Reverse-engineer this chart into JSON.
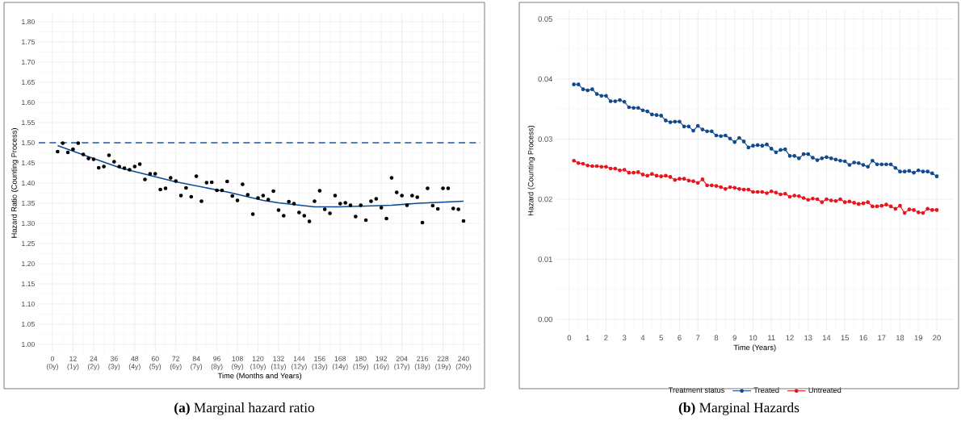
{
  "chart_data": [
    {
      "type": "scatter",
      "title": "**(a)** Marginal hazard ratio",
      "xlabel": "Time (Months and Years)",
      "ylabel": "Hazard Ratio (Counting Process)",
      "xlim": [
        -8,
        250
      ],
      "ylim": [
        0.98,
        1.82
      ],
      "xticks": [
        0,
        12,
        24,
        36,
        48,
        60,
        72,
        84,
        96,
        108,
        120,
        132,
        144,
        156,
        168,
        180,
        192,
        204,
        216,
        228,
        240
      ],
      "x2lim": [
        -0.6666666666666666,
        20.833333333333332
      ],
      "x2ticks": [
        {
          "value": 0,
          "label": "(0y)"
        },
        {
          "value": 1,
          "label": "(1y)"
        },
        {
          "value": 2,
          "label": "(2y)"
        },
        {
          "value": 3,
          "label": "(3y)"
        },
        {
          "value": 4,
          "label": "(4y)"
        },
        {
          "value": 5,
          "label": "(5y)"
        },
        {
          "value": 6,
          "label": "(6y)"
        },
        {
          "value": 7,
          "label": "(7y)"
        },
        {
          "value": 8,
          "label": "(8y)"
        },
        {
          "value": 9,
          "label": "(9y)"
        },
        {
          "value": 10,
          "label": "(10y)"
        },
        {
          "value": 11,
          "label": "(11y)"
        },
        {
          "value": 12,
          "label": "(12y)"
        },
        {
          "value": 13,
          "label": "(13y)"
        },
        {
          "value": 14,
          "label": "(14y)"
        },
        {
          "value": 15,
          "label": "(15y)"
        },
        {
          "value": 16,
          "label": "(16y)"
        },
        {
          "value": 17,
          "label": "(17y)"
        },
        {
          "value": 18,
          "label": "(18y)"
        },
        {
          "value": 19,
          "label": "(19y)"
        },
        {
          "value": 20,
          "label": "(20y)"
        }
      ],
      "yticks": [
        {
          "value": 1.0,
          "label": "1.00"
        },
        {
          "value": 1.05,
          "label": "1.05"
        },
        {
          "value": 1.1,
          "label": "1.10"
        },
        {
          "value": 1.15,
          "label": "1.15"
        },
        {
          "value": 1.2,
          "label": "1.20"
        },
        {
          "value": 1.25,
          "label": "1.25"
        },
        {
          "value": 1.3,
          "label": "1.30"
        },
        {
          "value": 1.35,
          "label": "1.35"
        },
        {
          "value": 1.4,
          "label": "1.40"
        },
        {
          "value": 1.45,
          "label": "1.45"
        },
        {
          "value": 1.5,
          "label": "1.50"
        },
        {
          "value": 1.55,
          "label": "1.55"
        },
        {
          "value": 1.6,
          "label": "1.60"
        },
        {
          "value": 1.65,
          "label": "1.65"
        },
        {
          "value": 1.7,
          "label": "1.70"
        },
        {
          "value": 1.75,
          "label": "1.75"
        },
        {
          "value": 1.8,
          "label": "1.80"
        }
      ],
      "grid": true,
      "ref_lines": [
        {
          "axis": "y",
          "value": 1.5,
          "color": "#1f5aa6",
          "line_style": "dashed"
        }
      ],
      "series": [
        {
          "type": "scatter",
          "marker": "circle",
          "color": "#000000",
          "x": [
            3,
            6,
            9,
            12,
            15,
            18,
            21,
            24,
            27,
            30,
            33,
            36,
            39,
            42,
            45,
            48,
            51,
            54,
            57,
            60,
            63,
            66,
            69,
            72,
            75,
            78,
            81,
            84,
            87,
            90,
            93,
            96,
            99,
            102,
            105,
            108,
            111,
            114,
            117,
            120,
            123,
            126,
            129,
            132,
            135,
            138,
            141,
            144,
            147,
            150,
            153,
            156,
            159,
            162,
            165,
            168,
            171,
            174,
            177,
            180,
            183,
            186,
            189,
            192,
            195,
            198,
            201,
            204,
            207,
            210,
            213,
            216,
            219,
            222,
            225,
            228,
            231,
            234,
            237,
            240
          ],
          "values": [
            1.478,
            1.499,
            1.476,
            1.484,
            1.499,
            1.471,
            1.461,
            1.459,
            1.438,
            1.441,
            1.469,
            1.453,
            1.441,
            1.437,
            1.433,
            1.441,
            1.447,
            1.409,
            1.423,
            1.423,
            1.384,
            1.387,
            1.413,
            1.405,
            1.369,
            1.388,
            1.366,
            1.417,
            1.355,
            1.401,
            1.402,
            1.382,
            1.382,
            1.404,
            1.368,
            1.357,
            1.397,
            1.371,
            1.323,
            1.363,
            1.369,
            1.359,
            1.38,
            1.333,
            1.319,
            1.354,
            1.349,
            1.327,
            1.319,
            1.305,
            1.355,
            1.381,
            1.335,
            1.325,
            1.369,
            1.349,
            1.351,
            1.345,
            1.317,
            1.345,
            1.308,
            1.355,
            1.361,
            1.339,
            1.312,
            1.413,
            1.377,
            1.369,
            1.345,
            1.369,
            1.365,
            1.302,
            1.387,
            1.344,
            1.336,
            1.387,
            1.387,
            1.337,
            1.335,
            1.306
          ]
        },
        {
          "type": "line",
          "marker": "none",
          "color": "#0d4a94",
          "x": [
            3,
            20,
            40,
            71,
            103,
            123,
            132,
            153,
            167,
            183,
            198,
            214,
            240
          ],
          "values": [
            1.493,
            1.467,
            1.437,
            1.404,
            1.377,
            1.357,
            1.351,
            1.341,
            1.341,
            1.343,
            1.345,
            1.35,
            1.355
          ]
        }
      ]
    },
    {
      "type": "line",
      "title": "**(b)** Marginal Hazards",
      "xlabel": "Time (Years)",
      "ylabel": "Hazard (Counting Process)",
      "xlim": [
        -0.7,
        20.9
      ],
      "ylim": [
        -0.002,
        0.0515
      ],
      "xticks": [
        0,
        1,
        2,
        3,
        4,
        5,
        6,
        7,
        8,
        9,
        10,
        11,
        12,
        13,
        14,
        15,
        16,
        17,
        18,
        19,
        20
      ],
      "yticks": [
        {
          "value": 0.0,
          "label": "0.00"
        },
        {
          "value": 0.01,
          "label": "0.01"
        },
        {
          "value": 0.02,
          "label": "0.02"
        },
        {
          "value": 0.03,
          "label": "0.03"
        },
        {
          "value": 0.04,
          "label": "0.04"
        },
        {
          "value": 0.05,
          "label": "0.05"
        }
      ],
      "grid": true,
      "marker": "circle",
      "legend": "bottom",
      "legend_title": "Treatment status",
      "x": [
        0.25,
        0.5,
        0.75,
        1,
        1.25,
        1.5,
        1.75,
        2,
        2.25,
        2.5,
        2.75,
        3,
        3.25,
        3.5,
        3.75,
        4,
        4.25,
        4.5,
        4.75,
        5,
        5.25,
        5.5,
        5.75,
        6,
        6.25,
        6.5,
        6.75,
        7,
        7.25,
        7.5,
        7.75,
        8,
        8.25,
        8.5,
        8.75,
        9,
        9.25,
        9.5,
        9.75,
        10,
        10.25,
        10.5,
        10.75,
        11,
        11.25,
        11.5,
        11.75,
        12,
        12.25,
        12.5,
        12.75,
        13,
        13.25,
        13.5,
        13.75,
        14,
        14.25,
        14.5,
        14.75,
        15,
        15.25,
        15.5,
        15.75,
        16,
        16.25,
        16.5,
        16.75,
        17,
        17.25,
        17.5,
        17.75,
        18,
        18.25,
        18.5,
        18.75,
        19,
        19.25,
        19.5,
        19.75,
        20
      ],
      "series": [
        {
          "name": "Treated",
          "color": "#10498c",
          "values": [
            0.0391,
            0.0391,
            0.0383,
            0.0381,
            0.0383,
            0.0375,
            0.0372,
            0.0372,
            0.0363,
            0.0363,
            0.0365,
            0.0362,
            0.0353,
            0.0352,
            0.0352,
            0.0348,
            0.0346,
            0.0341,
            0.034,
            0.0339,
            0.0331,
            0.0328,
            0.0329,
            0.0329,
            0.0321,
            0.0321,
            0.0314,
            0.0322,
            0.0316,
            0.0313,
            0.0313,
            0.0306,
            0.0305,
            0.0306,
            0.0301,
            0.0295,
            0.0302,
            0.0296,
            0.0286,
            0.0289,
            0.029,
            0.0289,
            0.0291,
            0.0284,
            0.0278,
            0.0282,
            0.0283,
            0.0272,
            0.0272,
            0.0268,
            0.0275,
            0.0275,
            0.0269,
            0.0265,
            0.0268,
            0.027,
            0.0268,
            0.0266,
            0.0264,
            0.0263,
            0.0257,
            0.0261,
            0.026,
            0.0257,
            0.0254,
            0.0264,
            0.0258,
            0.0258,
            0.0258,
            0.0258,
            0.0252,
            0.0246,
            0.0246,
            0.0247,
            0.0244,
            0.0248,
            0.0246,
            0.0246,
            0.0243,
            0.0238
          ]
        },
        {
          "name": "Untreated",
          "color": "#e8141c",
          "values": [
            0.0264,
            0.026,
            0.0259,
            0.0256,
            0.0255,
            0.0255,
            0.0254,
            0.0254,
            0.0251,
            0.0251,
            0.0248,
            0.0249,
            0.0244,
            0.0244,
            0.0245,
            0.0241,
            0.0239,
            0.0242,
            0.0239,
            0.0238,
            0.0239,
            0.0237,
            0.0232,
            0.0234,
            0.0234,
            0.0231,
            0.023,
            0.0227,
            0.0233,
            0.0223,
            0.0223,
            0.0222,
            0.022,
            0.0217,
            0.022,
            0.0219,
            0.0217,
            0.0216,
            0.0216,
            0.0212,
            0.0212,
            0.0212,
            0.021,
            0.0213,
            0.0211,
            0.0208,
            0.0209,
            0.0204,
            0.0206,
            0.0205,
            0.0202,
            0.0199,
            0.0201,
            0.02,
            0.0195,
            0.02,
            0.0198,
            0.0197,
            0.02,
            0.0195,
            0.0196,
            0.0194,
            0.0192,
            0.0193,
            0.0195,
            0.0188,
            0.0188,
            0.0189,
            0.0191,
            0.0188,
            0.0184,
            0.0189,
            0.0177,
            0.0183,
            0.0182,
            0.0178,
            0.0177,
            0.0184,
            0.0182,
            0.0182
          ]
        }
      ]
    }
  ]
}
